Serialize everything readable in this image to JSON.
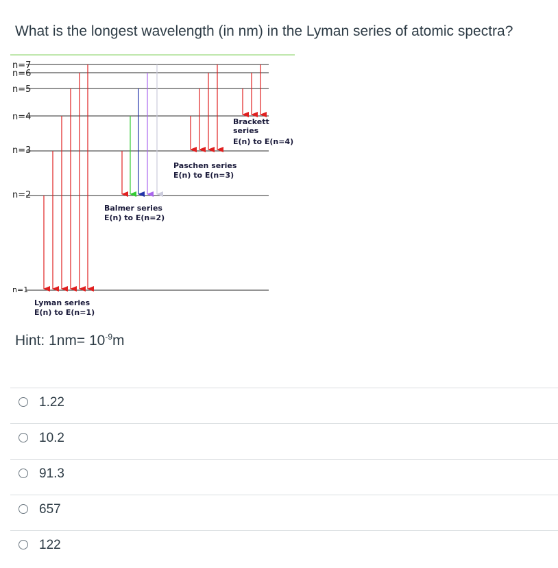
{
  "question": {
    "text": "What is the longest wavelength (in nm) in the Lyman series of atomic spectra?"
  },
  "diagram": {
    "levels": [
      "n=7",
      "n=6",
      "n=5",
      "n=4",
      "n=3",
      "n=2",
      "n=1"
    ],
    "lyman": {
      "title": "Lyman series",
      "formula": "E(n) to E(n=1)"
    },
    "balmer": {
      "title": "Balmer series",
      "formula": "E(n) to E(n=2)"
    },
    "paschen": {
      "title": "Paschen series",
      "formula": "E(n) to E(n=3)"
    },
    "brackett": {
      "title_line1": "Brackett",
      "title_line2": "series",
      "formula": "E(n) to E(n=4)"
    },
    "colors": {
      "red": "#e02020",
      "green": "#33cc33",
      "blue": "#2233aa",
      "violet": "#aa66ee",
      "lavender": "#ccccdd",
      "rule": "#7fcf5a"
    }
  },
  "hint": {
    "prefix": "Hint: 1nm= 10",
    "exponent": "-9",
    "unit": "m"
  },
  "answers": [
    {
      "label": "1.22"
    },
    {
      "label": "10.2"
    },
    {
      "label": "91.3"
    },
    {
      "label": "657"
    },
    {
      "label": "122"
    }
  ]
}
